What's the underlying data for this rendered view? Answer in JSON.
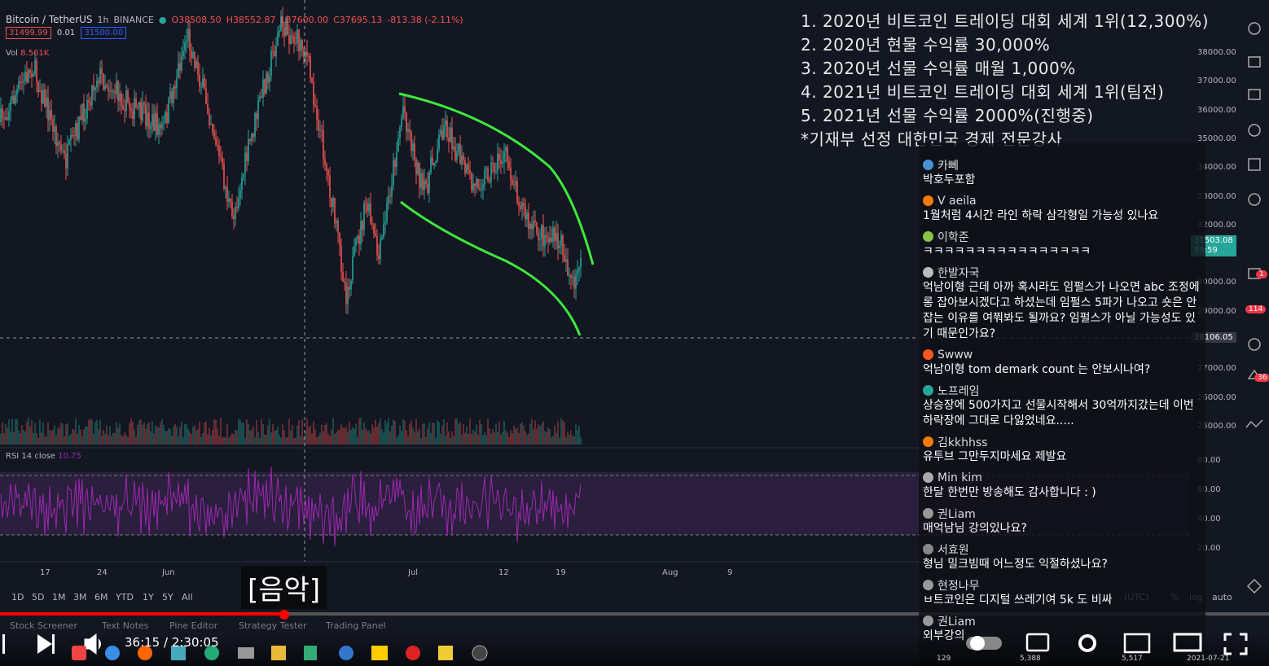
{
  "header": {
    "symbol": "Bitcoin / TetherUS",
    "interval": "1h",
    "exchange": "BINANCE",
    "open": "O38508.50",
    "high": "H38552.87",
    "low": "L37600.00",
    "close": "C37695.13",
    "change": "-813.38 (-2.11%)",
    "bid": "31499.99",
    "spread": "0.01",
    "ask": "31500.00",
    "vol_label": "Vol",
    "vol_value": "8.561K"
  },
  "overlay": [
    "1. 2020년 비트코인 트레이딩 대회 세계 1위(12,300%)",
    "2. 2020년 현물 수익률 30,000%",
    "3. 2020년 선물 수익률 매월 1,000%",
    "4. 2021년 비트코인 트레이딩 대회 세계 1위(팀전)",
    "5. 2021년 선물 수익률 2000%(진행중)",
    "*기재부 선정 대한민국 경제 전문강사"
  ],
  "price_axis": [
    "38000.00",
    "37000.00",
    "36000.00",
    "35000.00",
    "34000.00",
    "33000.00",
    "32000.00",
    "30000.00",
    "29000.00",
    "27000.00",
    "26000.00",
    "25000.00"
  ],
  "last_price": "31503.08",
  "countdown": "59:59",
  "crosshair_price": "28106.05",
  "rsi": {
    "label": "RSI 14 close",
    "value": "10.75",
    "axis": [
      "80.00",
      "60.00",
      "40.00",
      "20.00"
    ]
  },
  "time_axis": [
    "17",
    "24",
    "Jun",
    "Jul",
    "12",
    "19",
    "Aug",
    "9"
  ],
  "ranges": [
    "1D",
    "5D",
    "1M",
    "3M",
    "6M",
    "YTD",
    "1Y",
    "5Y",
    "All"
  ],
  "axis_options": [
    "(UTC)",
    "%",
    "log",
    "auto"
  ],
  "tabs": [
    "Stock Screener",
    "Text Notes",
    "Pine Editor",
    "Strategy Tester",
    "Trading Panel"
  ],
  "caption": "[음악]",
  "player": {
    "time": "36:15 / 2:30:05"
  },
  "badges": [
    "1",
    "114",
    "36"
  ],
  "chat": [
    {
      "user": "카뻬",
      "text": "박호두포함"
    },
    {
      "user": "V aeila",
      "text": "1월처럼 4시간 라인 하락 삼각형일 가능성 있나요"
    },
    {
      "user": "이학준",
      "text": "ㅋㅋㅋㅋㅋㅋㅋㅋㅋㅋㅋㅋㅋㅋㅋㅋ"
    },
    {
      "user": "한발자국",
      "text": "억남이형 근데 아까 혹시라도 임펄스가 나오면 abc 조정에 롱 잡아보시겠다고 하셨는데 임펄스 5파가 나오고 숏은 안잡는 이유를 여쭤봐도 될까요? 임펄스가 아닐 가능성도 있기 때문인가요?"
    },
    {
      "user": "Swww",
      "text": "억남이형 tom demark count 는 안보시나여?"
    },
    {
      "user": "노프레임",
      "text": "상승장에 500가지고 선물시작해서 30억까지갔는데 이번 하락장에 그대로 다잃었네요....."
    },
    {
      "user": "김kkhhss",
      "text": "유투브 그만두지마세요 제발요"
    },
    {
      "user": "Min kim",
      "text": "한달 한번만 방송해도 감사합니다 : )"
    },
    {
      "user": "권Liam",
      "text": "매억남님 강의있나요?"
    },
    {
      "user": "서효원",
      "text": "형님 밀크빔때 어느정도 익절하셨나요?"
    },
    {
      "user": "현정나무",
      "text": "ㅂ트코인은 디지털 쓰레기여 5k 도 비싸"
    },
    {
      "user": "권Liam",
      "text": "외부강의"
    }
  ],
  "taskbar": {
    "counts": [
      "129",
      "5,388",
      "5,517"
    ],
    "date": "2021-07-21"
  }
}
